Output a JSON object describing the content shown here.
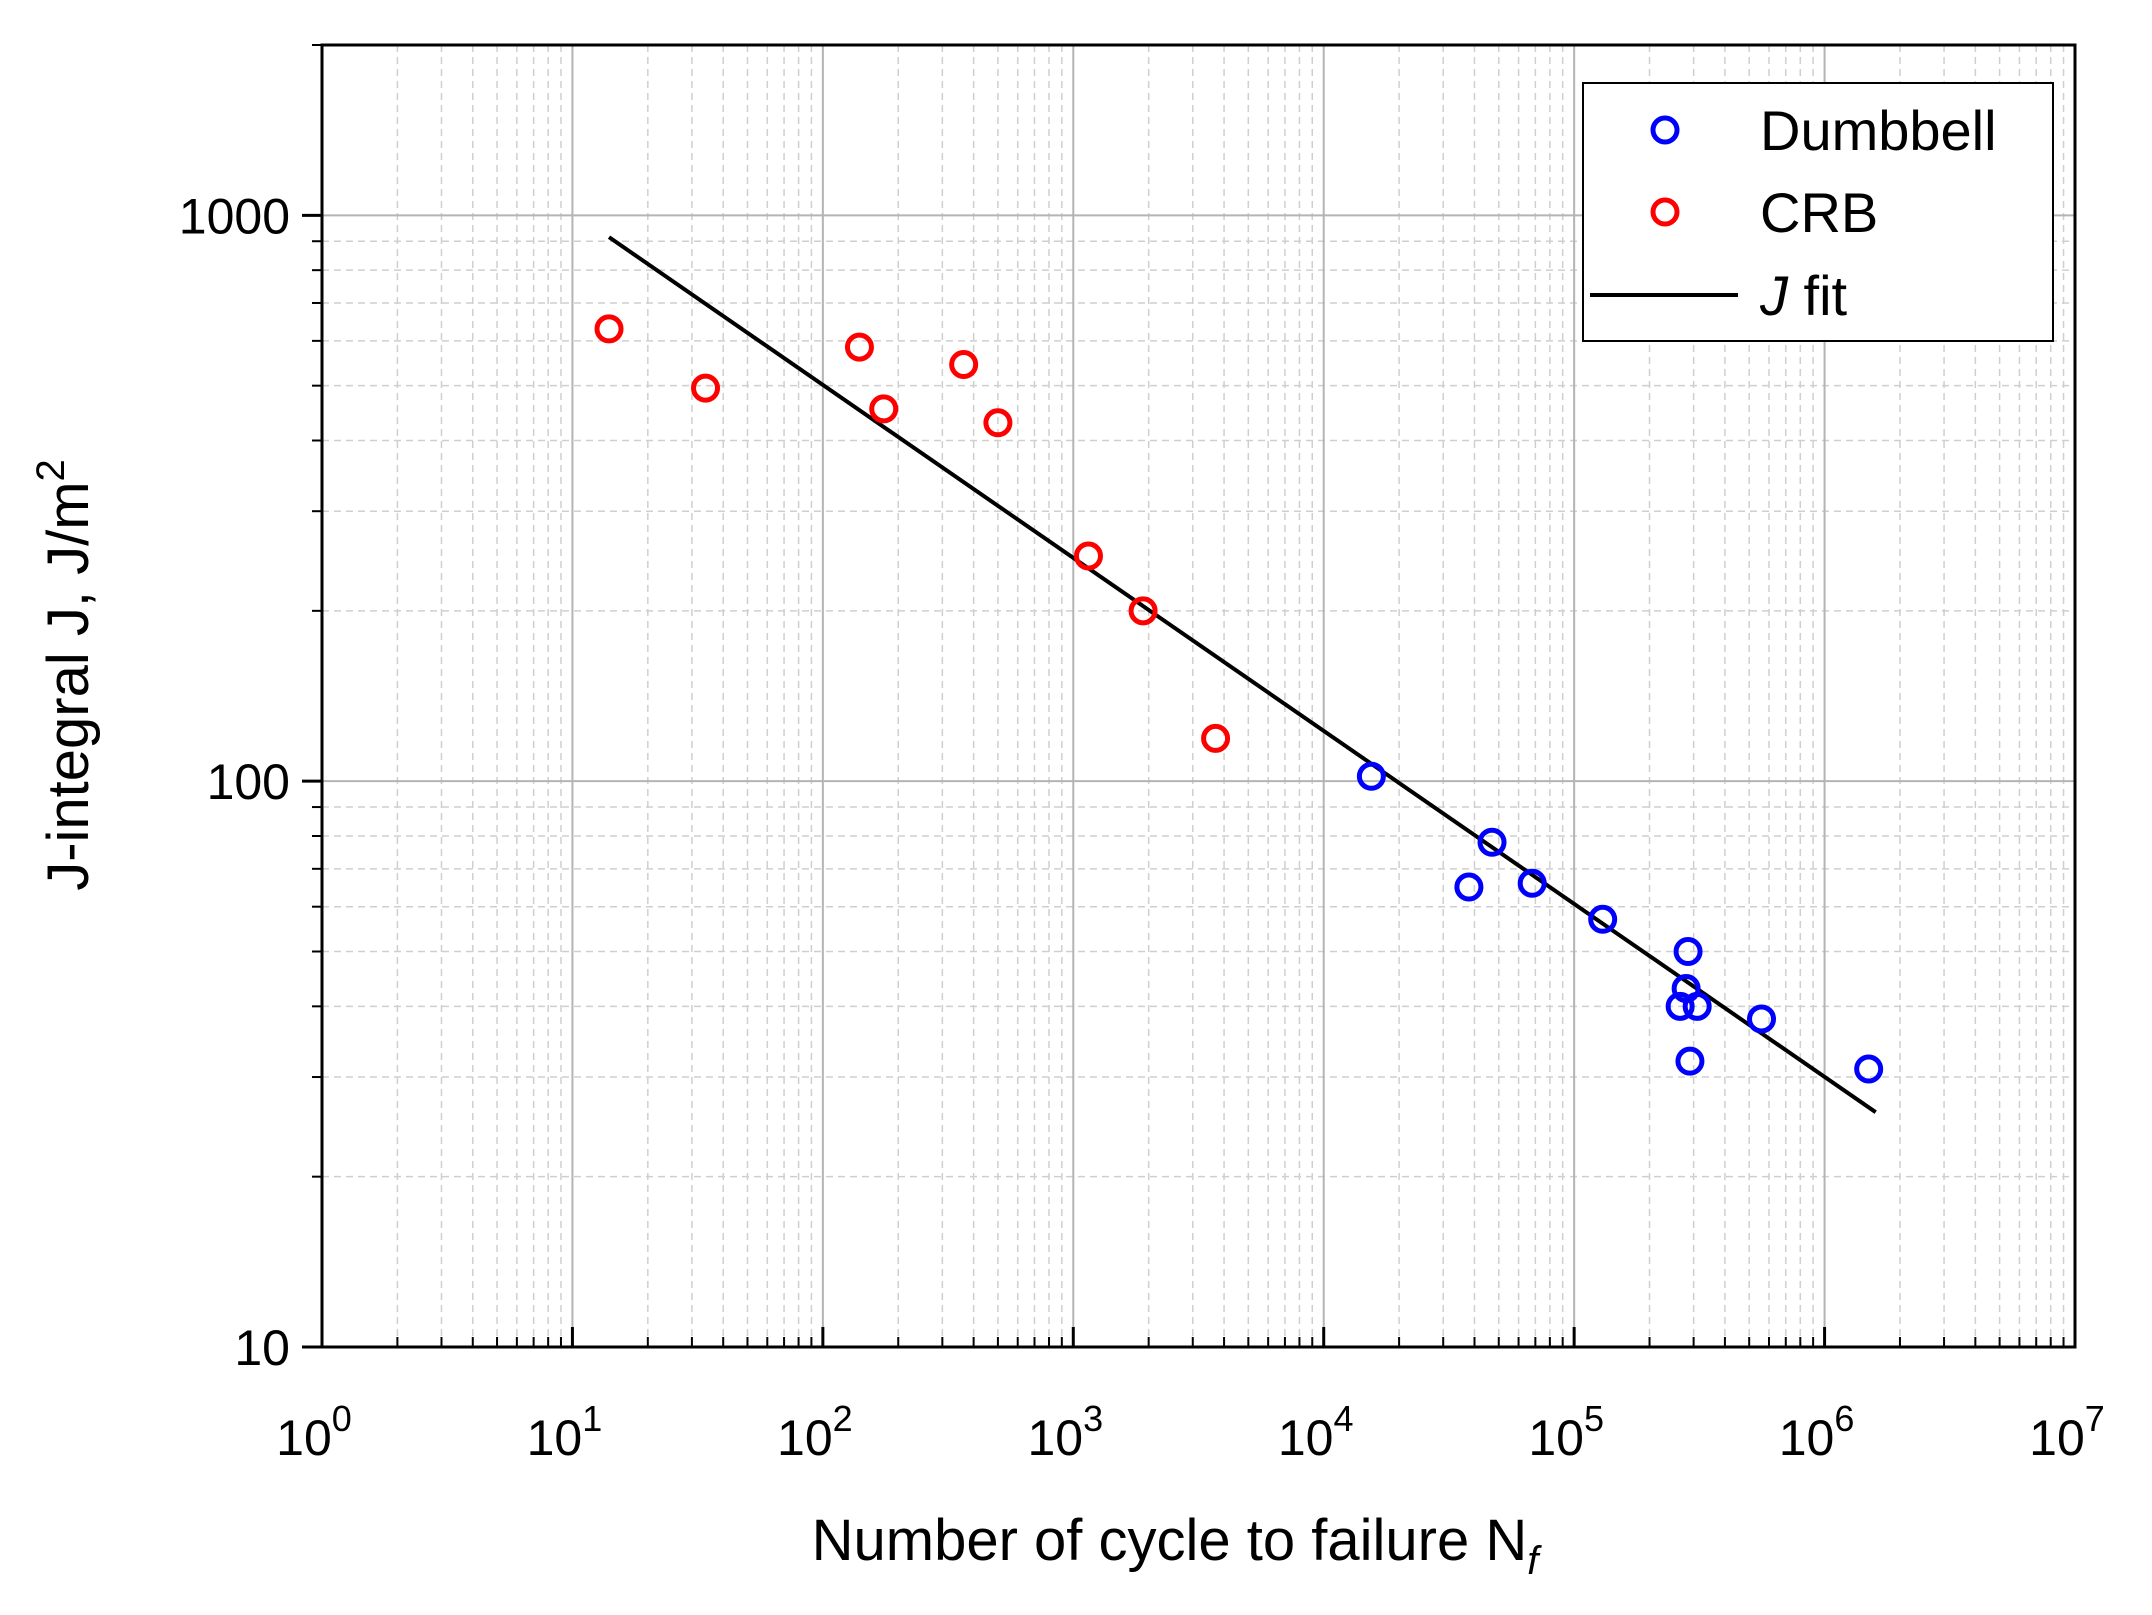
{
  "chart_data": {
    "type": "scatter",
    "title": "",
    "xlabel": "Number of cycle to failure N",
    "xlabel_sub": "f",
    "ylabel": "J-integral J, J/m",
    "ylabel_sup": "2",
    "xscale": "log",
    "yscale": "log",
    "xlim": [
      1,
      10000000
    ],
    "ylim": [
      10,
      2000
    ],
    "x_ticks": [
      {
        "base": "10",
        "exp": "0"
      },
      {
        "base": "10",
        "exp": "1"
      },
      {
        "base": "10",
        "exp": "2"
      },
      {
        "base": "10",
        "exp": "3"
      },
      {
        "base": "10",
        "exp": "4"
      },
      {
        "base": "10",
        "exp": "5"
      },
      {
        "base": "10",
        "exp": "6"
      },
      {
        "base": "10",
        "exp": "7"
      }
    ],
    "y_ticks": [
      "10",
      "100",
      "1000"
    ],
    "grid": true,
    "legend_position": "top-right",
    "series": [
      {
        "name": "Dumbbell",
        "marker": "open-circle",
        "color": "#0000ff",
        "points": [
          [
            15500,
            102
          ],
          [
            38000,
            65
          ],
          [
            47000,
            78
          ],
          [
            68000,
            66
          ],
          [
            130000,
            57
          ],
          [
            265000,
            40
          ],
          [
            280000,
            43
          ],
          [
            285000,
            50
          ],
          [
            290000,
            32
          ],
          [
            310000,
            40
          ],
          [
            560000,
            38
          ],
          [
            1500000,
            31
          ]
        ]
      },
      {
        "name": "CRB",
        "marker": "open-circle",
        "color": "#ff0000",
        "points": [
          [
            14,
            630
          ],
          [
            34,
            495
          ],
          [
            140,
            585
          ],
          [
            175,
            455
          ],
          [
            365,
            545
          ],
          [
            500,
            430
          ],
          [
            1150,
            250
          ],
          [
            1900,
            200
          ],
          [
            3700,
            119
          ]
        ]
      },
      {
        "name": "J fit",
        "name_italic": "J",
        "name_rest": " fit",
        "marker": "line",
        "color": "#000000",
        "points": [
          [
            14,
            915
          ],
          [
            1600000,
            26
          ]
        ]
      }
    ]
  }
}
